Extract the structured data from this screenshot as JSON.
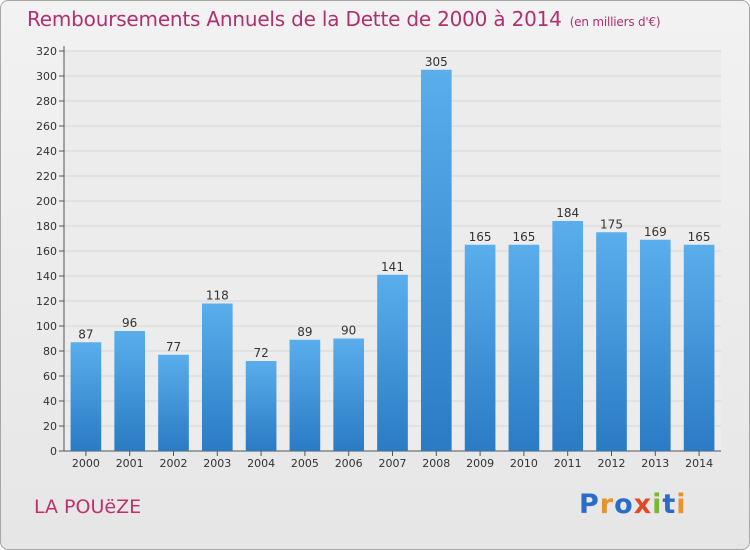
{
  "title": "Remboursements Annuels de la Dette de 2000 à 2014",
  "unit": "(en milliers d'€)",
  "commune": "LA POUëZE",
  "logo": {
    "text": "Proxiti",
    "colors": [
      "#2b6cc9",
      "#e5932a",
      "#2b6cc9",
      "#e04a2a",
      "#7cb82f",
      "#2b6cc9",
      "#e5932a"
    ]
  },
  "chart_data": {
    "type": "bar",
    "categories": [
      "2000",
      "2001",
      "2002",
      "2003",
      "2004",
      "2005",
      "2006",
      "2007",
      "2008",
      "2009",
      "2010",
      "2011",
      "2012",
      "2013",
      "2014"
    ],
    "values": [
      87,
      96,
      77,
      118,
      72,
      89,
      90,
      141,
      305,
      165,
      165,
      184,
      175,
      169,
      165
    ],
    "ylim": [
      0,
      320
    ],
    "yticks": [
      0,
      20,
      40,
      60,
      80,
      100,
      120,
      140,
      160,
      180,
      200,
      220,
      240,
      260,
      280,
      300,
      320
    ],
    "grid": true,
    "bar_color": "#3f9ae0",
    "title": "Remboursements Annuels de la Dette de 2000 à 2014",
    "xlabel": "",
    "ylabel": ""
  }
}
